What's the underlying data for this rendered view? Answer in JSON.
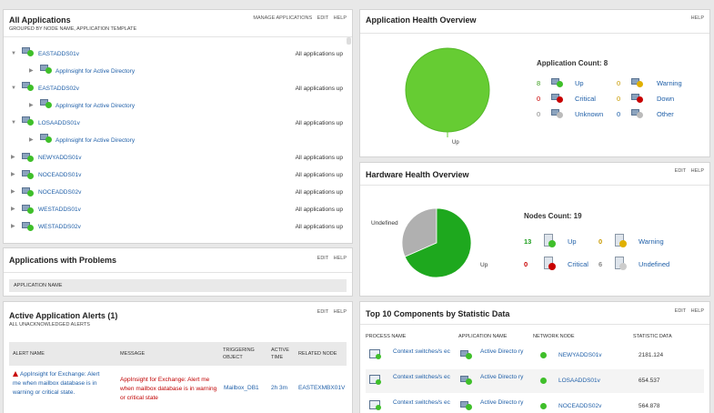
{
  "all_apps": {
    "title": "All Applications",
    "subtitle": "GROUPED BY NODE NAME, APPLICATION TEMPLATE",
    "links": [
      "MANAGE APPLICATIONS",
      "EDIT",
      "HELP"
    ],
    "nodes": [
      {
        "name": "EASTADDS01v",
        "status": "All applications up",
        "expanded": true,
        "child": "AppInsight for Active Directory"
      },
      {
        "name": "EASTADDS02v",
        "status": "All applications up",
        "expanded": true,
        "child": "AppInsight for Active Directory"
      },
      {
        "name": "LOSAADDS01v",
        "status": "All applications up",
        "expanded": true,
        "child": "AppInsight for Active Directory"
      },
      {
        "name": "NEWYADDS01v",
        "status": "All applications up",
        "expanded": false
      },
      {
        "name": "NOCEADDS01v",
        "status": "All applications up",
        "expanded": false
      },
      {
        "name": "NOCEADDS02v",
        "status": "All applications up",
        "expanded": false
      },
      {
        "name": "WESTADDS01v",
        "status": "All applications up",
        "expanded": false
      },
      {
        "name": "WESTADDS02v",
        "status": "All applications up",
        "expanded": false
      }
    ]
  },
  "problems": {
    "title": "Applications with Problems",
    "links": [
      "EDIT",
      "HELP"
    ],
    "column": "APPLICATION NAME"
  },
  "alerts": {
    "title": "Active Application Alerts (1)",
    "subtitle": "ALL UNACKNOWLEDGED ALERTS",
    "links": [
      "EDIT",
      "HELP"
    ],
    "columns": [
      "ALERT NAME",
      "MESSAGE",
      "TRIGGERING OBJECT",
      "ACTIVE TIME",
      "RELATED NODE"
    ],
    "row": {
      "alert_name": "AppInsight for Exchange: Alert me when mailbox database is in warning or critical state.",
      "message": "AppInsight for Exchange: Alert me when mailbox database is in warning or critical state",
      "object": "Mailbox_DB1",
      "time": "2h 3m",
      "node": "EASTEXMBX01V"
    }
  },
  "app_health": {
    "title": "Application Health Overview",
    "links": [
      "HELP"
    ],
    "count_label": "Application Count: 8",
    "pie_label": "Up",
    "legend": [
      {
        "count": "8",
        "label": "Up",
        "color": "#3a9c1a"
      },
      {
        "count": "0",
        "label": "Warning",
        "color": "#c89a00"
      },
      {
        "count": "0",
        "label": "Critical",
        "color": "#c80000"
      },
      {
        "count": "0",
        "label": "Down",
        "color": "#c89a00"
      },
      {
        "count": "0",
        "label": "Unknown",
        "color": "#888888"
      },
      {
        "count": "0",
        "label": "Other",
        "color": "#1f5fa8"
      }
    ]
  },
  "hw_health": {
    "title": "Hardware Health Overview",
    "links": [
      "EDIT",
      "HELP"
    ],
    "count_label": "Nodes Count: 19",
    "pie_up_label": "Up",
    "pie_undef_label": "Undefined",
    "legend": [
      {
        "count": "13",
        "label": "Up"
      },
      {
        "count": "0",
        "label": "Warning"
      },
      {
        "count": "0",
        "label": "Critical"
      },
      {
        "count": "6",
        "label": "Undefined"
      }
    ]
  },
  "top10": {
    "title": "Top 10 Components by Statistic Data",
    "links": [
      "EDIT",
      "HELP"
    ],
    "columns": [
      "PROCESS NAME",
      "APPLICATION NAME",
      "NETWORK NODE",
      "STATISTIC DATA"
    ],
    "rows": [
      {
        "process": "Context switches/s ec",
        "app": "Active Directo ry",
        "node": "NEWYADDS01v",
        "value": "2181.124"
      },
      {
        "process": "Context switches/s ec",
        "app": "Active Directo ry",
        "node": "LOSAADDS01v",
        "value": "654.537"
      },
      {
        "process": "Context switches/s ec",
        "app": "Active Directo ry",
        "node": "NOCEADDS02v",
        "value": "564.878"
      }
    ]
  }
}
